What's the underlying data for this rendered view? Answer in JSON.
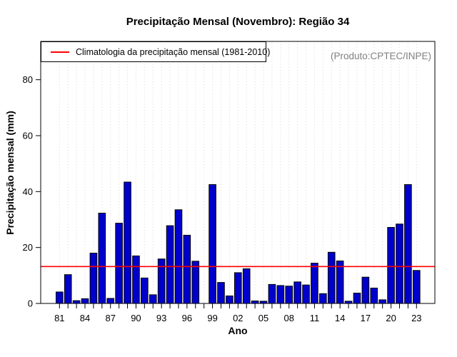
{
  "header": {
    "title": "Precipitação Mensal (Novembro): Região 34"
  },
  "annotations": {
    "source": "(Produto:CPTEC/INPE)"
  },
  "legend": {
    "label": "Climatologia da precipitação mensal (1981-2010)",
    "line_color": "#ff0000",
    "position": "top-left"
  },
  "chart_data": {
    "type": "bar",
    "title": "Precipitação Mensal (Novembro): Região 34",
    "xlabel": "Ano",
    "ylabel": "Precipitação mensal (mm)",
    "categories": [
      1981,
      1982,
      1983,
      1984,
      1985,
      1986,
      1987,
      1988,
      1989,
      1990,
      1991,
      1992,
      1993,
      1994,
      1995,
      1996,
      1997,
      1998,
      1999,
      2000,
      2001,
      2002,
      2003,
      2004,
      2005,
      2006,
      2007,
      2008,
      2009,
      2010,
      2011,
      2012,
      2013,
      2014,
      2015,
      2016,
      2017,
      2018,
      2019,
      2020,
      2021,
      2022,
      2023
    ],
    "values": [
      4.1,
      10.3,
      1.0,
      1.7,
      18.0,
      32.3,
      1.8,
      28.7,
      43.4,
      17.0,
      9.1,
      3.1,
      15.9,
      27.8,
      33.5,
      24.4,
      15.1,
      0,
      42.5,
      7.5,
      2.7,
      11.0,
      12.4,
      0.9,
      0.8,
      6.8,
      6.4,
      6.2,
      7.7,
      6.6,
      14.4,
      3.5,
      18.3,
      15.2,
      0.8,
      3.7,
      9.4,
      5.5,
      1.3,
      27.2,
      28.4,
      42.5,
      11.8
    ],
    "x_tick_labels": [
      "81",
      "84",
      "87",
      "90",
      "93",
      "96",
      "99",
      "02",
      "05",
      "08",
      "11",
      "14",
      "17",
      "20",
      "23"
    ],
    "x_tick_label_every": 3,
    "y_ticks": [
      0,
      20,
      40,
      60,
      80
    ],
    "ylim": [
      0,
      93.7
    ],
    "grid": "vertical-dotted",
    "grid_color": "#d9d9d9",
    "bar_color": "#0000cd",
    "bar_border_color": "#000000",
    "climatology_line": {
      "value": 13.2,
      "color": "#ff0000",
      "label": "Climatologia da precipitação mensal (1981-2010)"
    },
    "legend_position": "top-left"
  }
}
